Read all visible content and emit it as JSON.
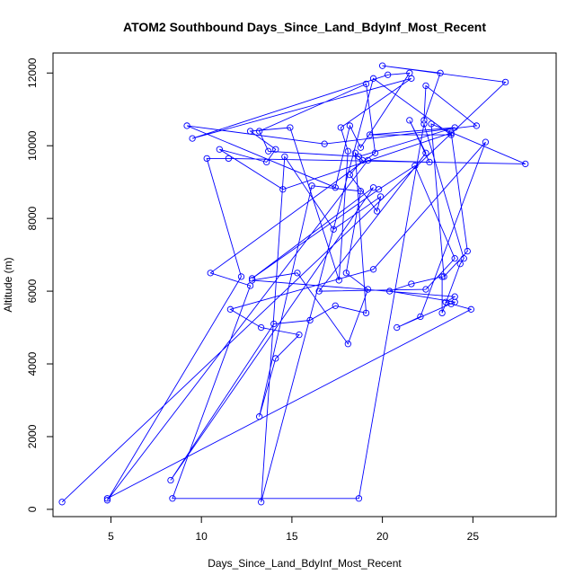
{
  "chart_data": {
    "type": "line",
    "title": "ATOM2 Southbound Days_Since_Land_BdyInf_Most_Recent",
    "xlabel": "Days_Since_Land_BdyInf_Most_Recent",
    "ylabel": "Altitude (m)",
    "xlim": [
      1.8,
      29.6
    ],
    "ylim": [
      -200,
      12550
    ],
    "x_ticks": [
      5,
      10,
      15,
      20,
      25
    ],
    "y_ticks": [
      0,
      2000,
      4000,
      6000,
      8000,
      10000,
      12000
    ],
    "grid": false,
    "legend": "none",
    "series": [
      {
        "color": "#0000ff",
        "marker": "open-circle",
        "x": [
          2.3,
          26.8,
          20.0,
          23.2,
          22.3,
          22.4,
          25.2,
          16.8,
          9.2,
          17.4,
          18.2,
          18.8,
          21.5,
          20.3,
          9.5,
          21.6,
          17.7,
          18.1,
          17.6,
          14.9,
          12.7,
          14.1,
          13.6,
          11.0,
          14.5,
          23.8,
          24.7,
          23.4,
          22.7,
          27.9,
          11.5,
          10.3,
          12.2,
          4.8,
          19.2,
          22.6,
          21.5,
          22.4,
          16.5,
          22.4,
          24.0,
          21.8,
          19.8,
          12.8,
          19.5,
          8.3,
          14.0,
          16.0,
          17.4,
          19.1,
          18.5,
          18.9,
          18.2,
          19.7,
          19.9,
          17.3,
          14.6,
          13.3,
          19.5,
          23.8,
          19.3,
          24.0,
          18.7,
          13.7,
          13.2,
          19.1,
          19.6,
          10.5,
          12.7,
          8.4,
          18.7,
          22.3,
          24.5,
          24.3,
          23.3,
          23.3,
          21.6,
          20.4,
          24.0,
          20.8,
          22.1,
          25.7,
          19.5,
          11.6,
          13.3,
          15.4,
          14.1,
          13.2,
          16.1,
          18.8,
          18.0,
          19.2,
          18.1,
          15.3,
          12.8,
          24.0,
          23.5,
          23.8,
          24.9,
          4.8
        ],
        "y": [
          200,
          11750,
          12200,
          12000,
          10700,
          11650,
          10550,
          10050,
          10550,
          8850,
          10550,
          9950,
          12000,
          11950,
          10200,
          11850,
          10500,
          9850,
          6300,
          10500,
          10400,
          9900,
          9550,
          9900,
          8800,
          10350,
          7100,
          6400,
          10600,
          9500,
          9650,
          9650,
          6400,
          250,
          9600,
          9550,
          10700,
          9800,
          6000,
          6050,
          6900,
          9450,
          8800,
          6350,
          8850,
          800,
          5100,
          5200,
          5600,
          5400,
          9800,
          9600,
          9200,
          8200,
          8600,
          7700,
          9700,
          200,
          11850,
          10300,
          10300,
          10500,
          9700,
          9850,
          10400,
          11700,
          9800,
          6500,
          6150,
          300,
          300,
          10600,
          6900,
          6750,
          5400,
          6400,
          6200,
          6000,
          5700,
          5000,
          5300,
          10100,
          6600,
          5500,
          5000,
          4800,
          4150,
          2550,
          8900,
          8750,
          6500,
          6050,
          4550,
          6500,
          6300,
          5850,
          5700,
          5650,
          5500,
          300
        ]
      }
    ]
  }
}
